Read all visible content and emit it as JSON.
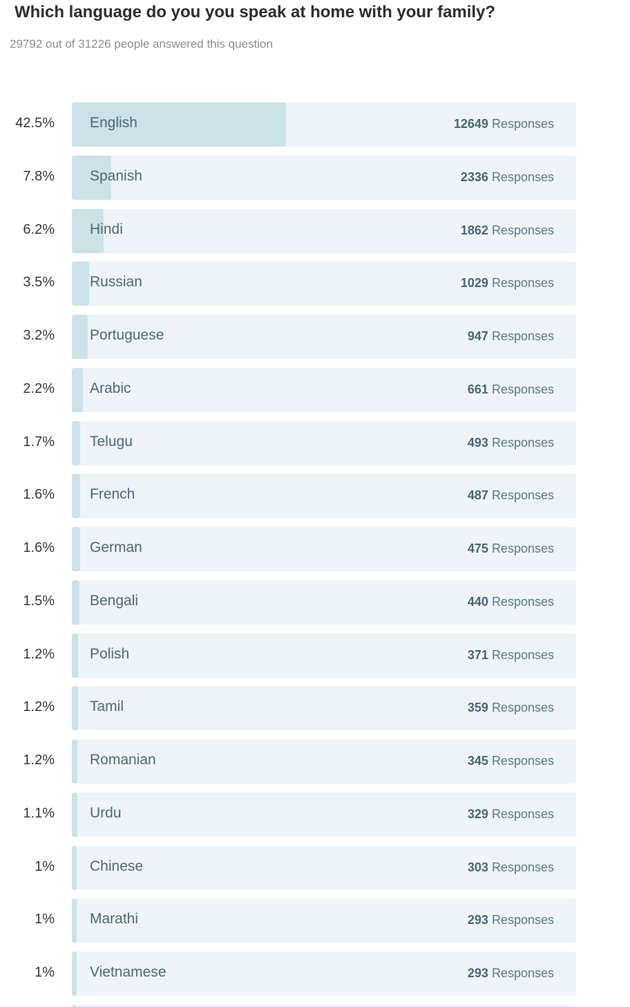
{
  "question": {
    "title": "Which language do you you speak at home with your family?",
    "summary": "29792 out of 31226 people answered this question"
  },
  "colors": {
    "track": "#eef4f7",
    "fill": "#cde2e7",
    "label_text": "#4e6670"
  },
  "responses_word": "Responses",
  "chart_data": {
    "type": "bar",
    "orientation": "horizontal",
    "total_answered": 29792,
    "total_people": 31226,
    "categories": [
      "English",
      "Spanish",
      "Hindi",
      "Russian",
      "Portuguese",
      "Arabic",
      "Telugu",
      "French",
      "German",
      "Bengali",
      "Polish",
      "Tamil",
      "Romanian",
      "Urdu",
      "Chinese",
      "Marathi",
      "Vietnamese"
    ],
    "values": [
      12649,
      2336,
      1862,
      1029,
      947,
      661,
      493,
      487,
      475,
      440,
      371,
      359,
      345,
      329,
      303,
      293,
      293
    ],
    "percent_labels": [
      "42.5%",
      "7.8%",
      "6.2%",
      "3.5%",
      "3.2%",
      "2.2%",
      "1.7%",
      "1.6%",
      "1.6%",
      "1.5%",
      "1.2%",
      "1.2%",
      "1.2%",
      "1.1%",
      "1%",
      "1%",
      "1%"
    ],
    "xlabel": "",
    "ylabel": "",
    "grid": false,
    "legend": "none"
  }
}
